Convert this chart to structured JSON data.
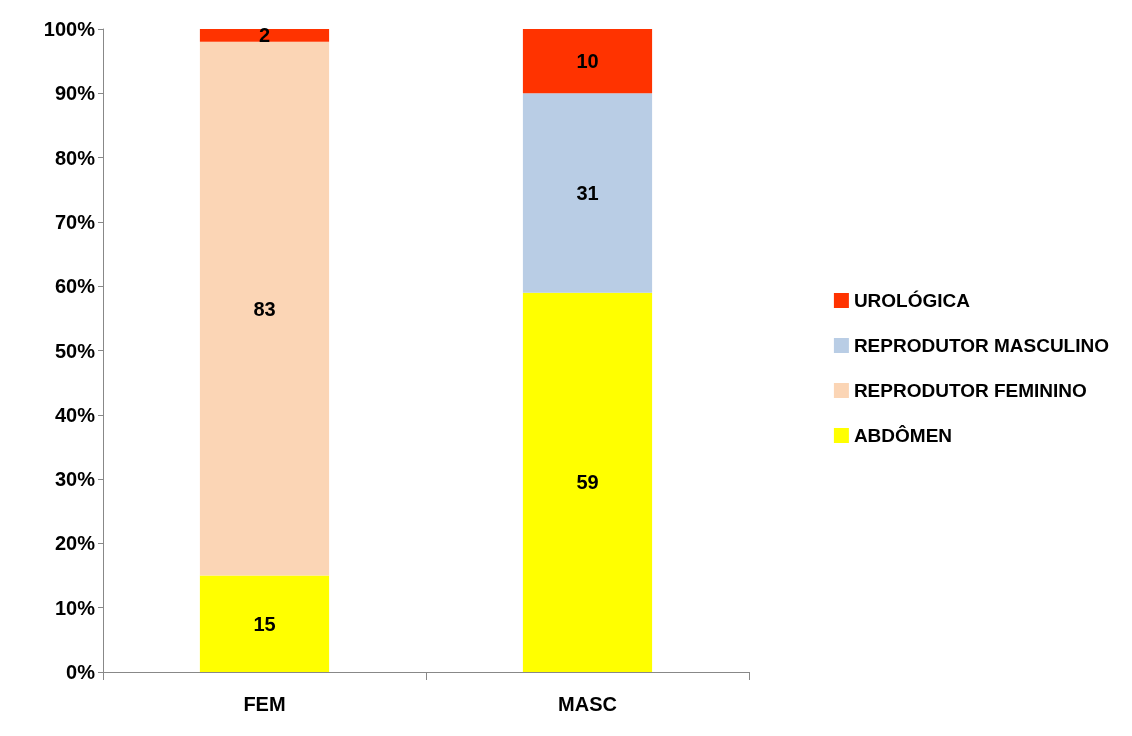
{
  "chart_data": {
    "type": "bar",
    "stacked": true,
    "categories": [
      "FEM",
      "MASC"
    ],
    "series": [
      {
        "name": "ABDÔMEN",
        "color": "#ffff00",
        "values": [
          15,
          59
        ]
      },
      {
        "name": "REPRODUTOR FEMININO",
        "color": "#fbd5b5",
        "values": [
          83,
          null
        ]
      },
      {
        "name": "REPRODUTOR MASCULINO",
        "color": "#b9cde5",
        "values": [
          null,
          31
        ]
      },
      {
        "name": "UROLÓGICA",
        "color": "#ff3300",
        "values": [
          2,
          10
        ]
      }
    ],
    "ylim": [
      0,
      100
    ],
    "yticks": [
      {
        "value": 0,
        "label": "0%"
      },
      {
        "value": 10,
        "label": "10%"
      },
      {
        "value": 20,
        "label": "20%"
      },
      {
        "value": 30,
        "label": "30%"
      },
      {
        "value": 40,
        "label": "40%"
      },
      {
        "value": 50,
        "label": "50%"
      },
      {
        "value": 60,
        "label": "60%"
      },
      {
        "value": 70,
        "label": "70%"
      },
      {
        "value": 80,
        "label": "80%"
      },
      {
        "value": 90,
        "label": "90%"
      },
      {
        "value": 100,
        "label": "100%"
      }
    ],
    "data_labels": true,
    "grid": false,
    "legend": "right"
  }
}
